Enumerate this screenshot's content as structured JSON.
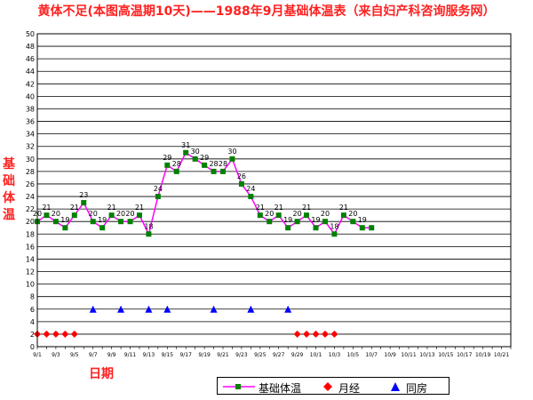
{
  "chart_data": {
    "type": "line",
    "title": "黄体不足(本图高温期10天)——1988年9月基础体温表（来自妇产科咨询服务网）",
    "ylabel": "基础体温",
    "xlabel": "日期",
    "ylim": [
      0,
      50
    ],
    "yticks": [
      0,
      2,
      4,
      6,
      8,
      10,
      12,
      14,
      16,
      18,
      20,
      22,
      24,
      26,
      28,
      30,
      32,
      34,
      36,
      38,
      40,
      42,
      44,
      46,
      48,
      50
    ],
    "xlim": [
      1,
      52
    ],
    "x_tick_labels": [
      "9/1",
      "9/3",
      "9/5",
      "9/7",
      "9/9",
      "9/11",
      "9/13",
      "9/15",
      "9/17",
      "9/19",
      "9/21",
      "9/23",
      "9/25",
      "9/27",
      "9/29",
      "10/1",
      "10/3",
      "10/5",
      "10/7",
      "10/9",
      "10/11",
      "10/13",
      "10/15",
      "10/17",
      "10/19",
      "10/21"
    ],
    "grid": true,
    "series": [
      {
        "name": "基础体温",
        "color": "#ff00ff",
        "marker_color": "#008000",
        "marker": "square",
        "x": [
          1,
          2,
          3,
          4,
          5,
          6,
          7,
          8,
          9,
          10,
          11,
          12,
          13,
          14,
          15,
          16,
          17,
          18,
          19,
          20,
          21,
          22,
          23,
          24,
          25,
          26,
          27,
          28,
          29,
          30,
          31,
          32,
          33,
          34,
          35,
          36,
          37
        ],
        "values": [
          20,
          21,
          20,
          19,
          21,
          23,
          20,
          19,
          21,
          20,
          20,
          21,
          18,
          24,
          29,
          28,
          31,
          30,
          29,
          28,
          28,
          30,
          26,
          24,
          21,
          20,
          21,
          19,
          20,
          21,
          19,
          20,
          18,
          21,
          20,
          19,
          19
        ],
        "labels": [
          "20",
          "21",
          "20",
          "19",
          "21",
          "23",
          "20",
          "19",
          "21",
          "20",
          "20",
          "21",
          "18",
          "24",
          "29",
          "28",
          "31",
          "30",
          "29",
          "28",
          "28",
          "30",
          "26",
          "24",
          "21",
          "20",
          "21",
          "19",
          "20",
          "21",
          "19",
          "20",
          "18",
          "21",
          "20",
          "19",
          ""
        ]
      },
      {
        "name": "月经",
        "color": "#ff0000",
        "marker": "diamond",
        "x": [
          1,
          2,
          3,
          4,
          5,
          29,
          30,
          31,
          32,
          33
        ],
        "values": [
          2,
          2,
          2,
          2,
          2,
          2,
          2,
          2,
          2,
          2
        ]
      },
      {
        "name": "同房",
        "color": "#0000ff",
        "marker": "triangle",
        "x": [
          7,
          10,
          13,
          15,
          20,
          24,
          28
        ],
        "values": [
          6,
          6,
          6,
          6,
          6,
          6,
          6
        ]
      }
    ],
    "legend_position": "bottom"
  }
}
